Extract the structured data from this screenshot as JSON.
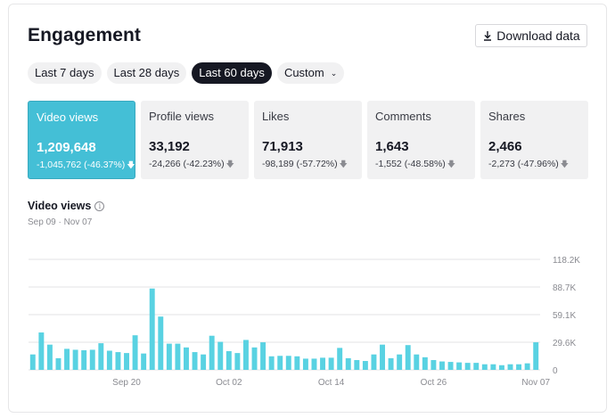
{
  "title": "Engagement",
  "download_label": "Download data",
  "ranges": [
    {
      "label": "Last 7 days",
      "active": false
    },
    {
      "label": "Last 28 days",
      "active": false
    },
    {
      "label": "Last 60 days",
      "active": true
    },
    {
      "label": "Custom",
      "active": false
    }
  ],
  "metrics": [
    {
      "label": "Video views",
      "value": "1,209,648",
      "delta": "-1,045,762 (-46.37%)",
      "active": true
    },
    {
      "label": "Profile views",
      "value": "33,192",
      "delta": "-24,266 (-42.23%)",
      "active": false
    },
    {
      "label": "Likes",
      "value": "71,913",
      "delta": "-98,189 (-57.72%)",
      "active": false
    },
    {
      "label": "Comments",
      "value": "1,643",
      "delta": "-1,552 (-48.58%)",
      "active": false
    },
    {
      "label": "Shares",
      "value": "2,466",
      "delta": "-2,273 (-47.96%)",
      "active": false
    }
  ],
  "chart": {
    "title": "Video views",
    "date_range": "Sep 09 · Nov 07"
  },
  "colors": {
    "accent": "#44bfd6",
    "bar": "#59d2e2",
    "dark": "#161823"
  },
  "chart_data": {
    "type": "bar",
    "xlabel": "",
    "ylabel": "",
    "ylim": [
      0,
      118200
    ],
    "y_ticks": [
      "118.2K",
      "88.7K",
      "59.1K",
      "29.6K",
      "0"
    ],
    "x_ticks": [
      {
        "label": "Sep 20",
        "index": 11
      },
      {
        "label": "Oct 02",
        "index": 23
      },
      {
        "label": "Oct 14",
        "index": 35
      },
      {
        "label": "Oct 26",
        "index": 47
      },
      {
        "label": "Nov 07",
        "index": 59
      }
    ],
    "grid": true,
    "values": [
      16500,
      40000,
      27000,
      12500,
      22500,
      21500,
      21000,
      21500,
      28500,
      20500,
      19000,
      18000,
      37000,
      17500,
      87000,
      57000,
      28000,
      28000,
      24000,
      19000,
      16500,
      36500,
      30000,
      20000,
      18000,
      32000,
      24000,
      29500,
      14500,
      15000,
      15000,
      14500,
      12000,
      12000,
      13000,
      13000,
      23500,
      12500,
      10500,
      9500,
      16500,
      27000,
      12500,
      16500,
      26500,
      16500,
      13500,
      10500,
      9000,
      8500,
      8000,
      7500,
      7500,
      6000,
      6000,
      5000,
      6000,
      6000,
      7000,
      29500
    ]
  }
}
